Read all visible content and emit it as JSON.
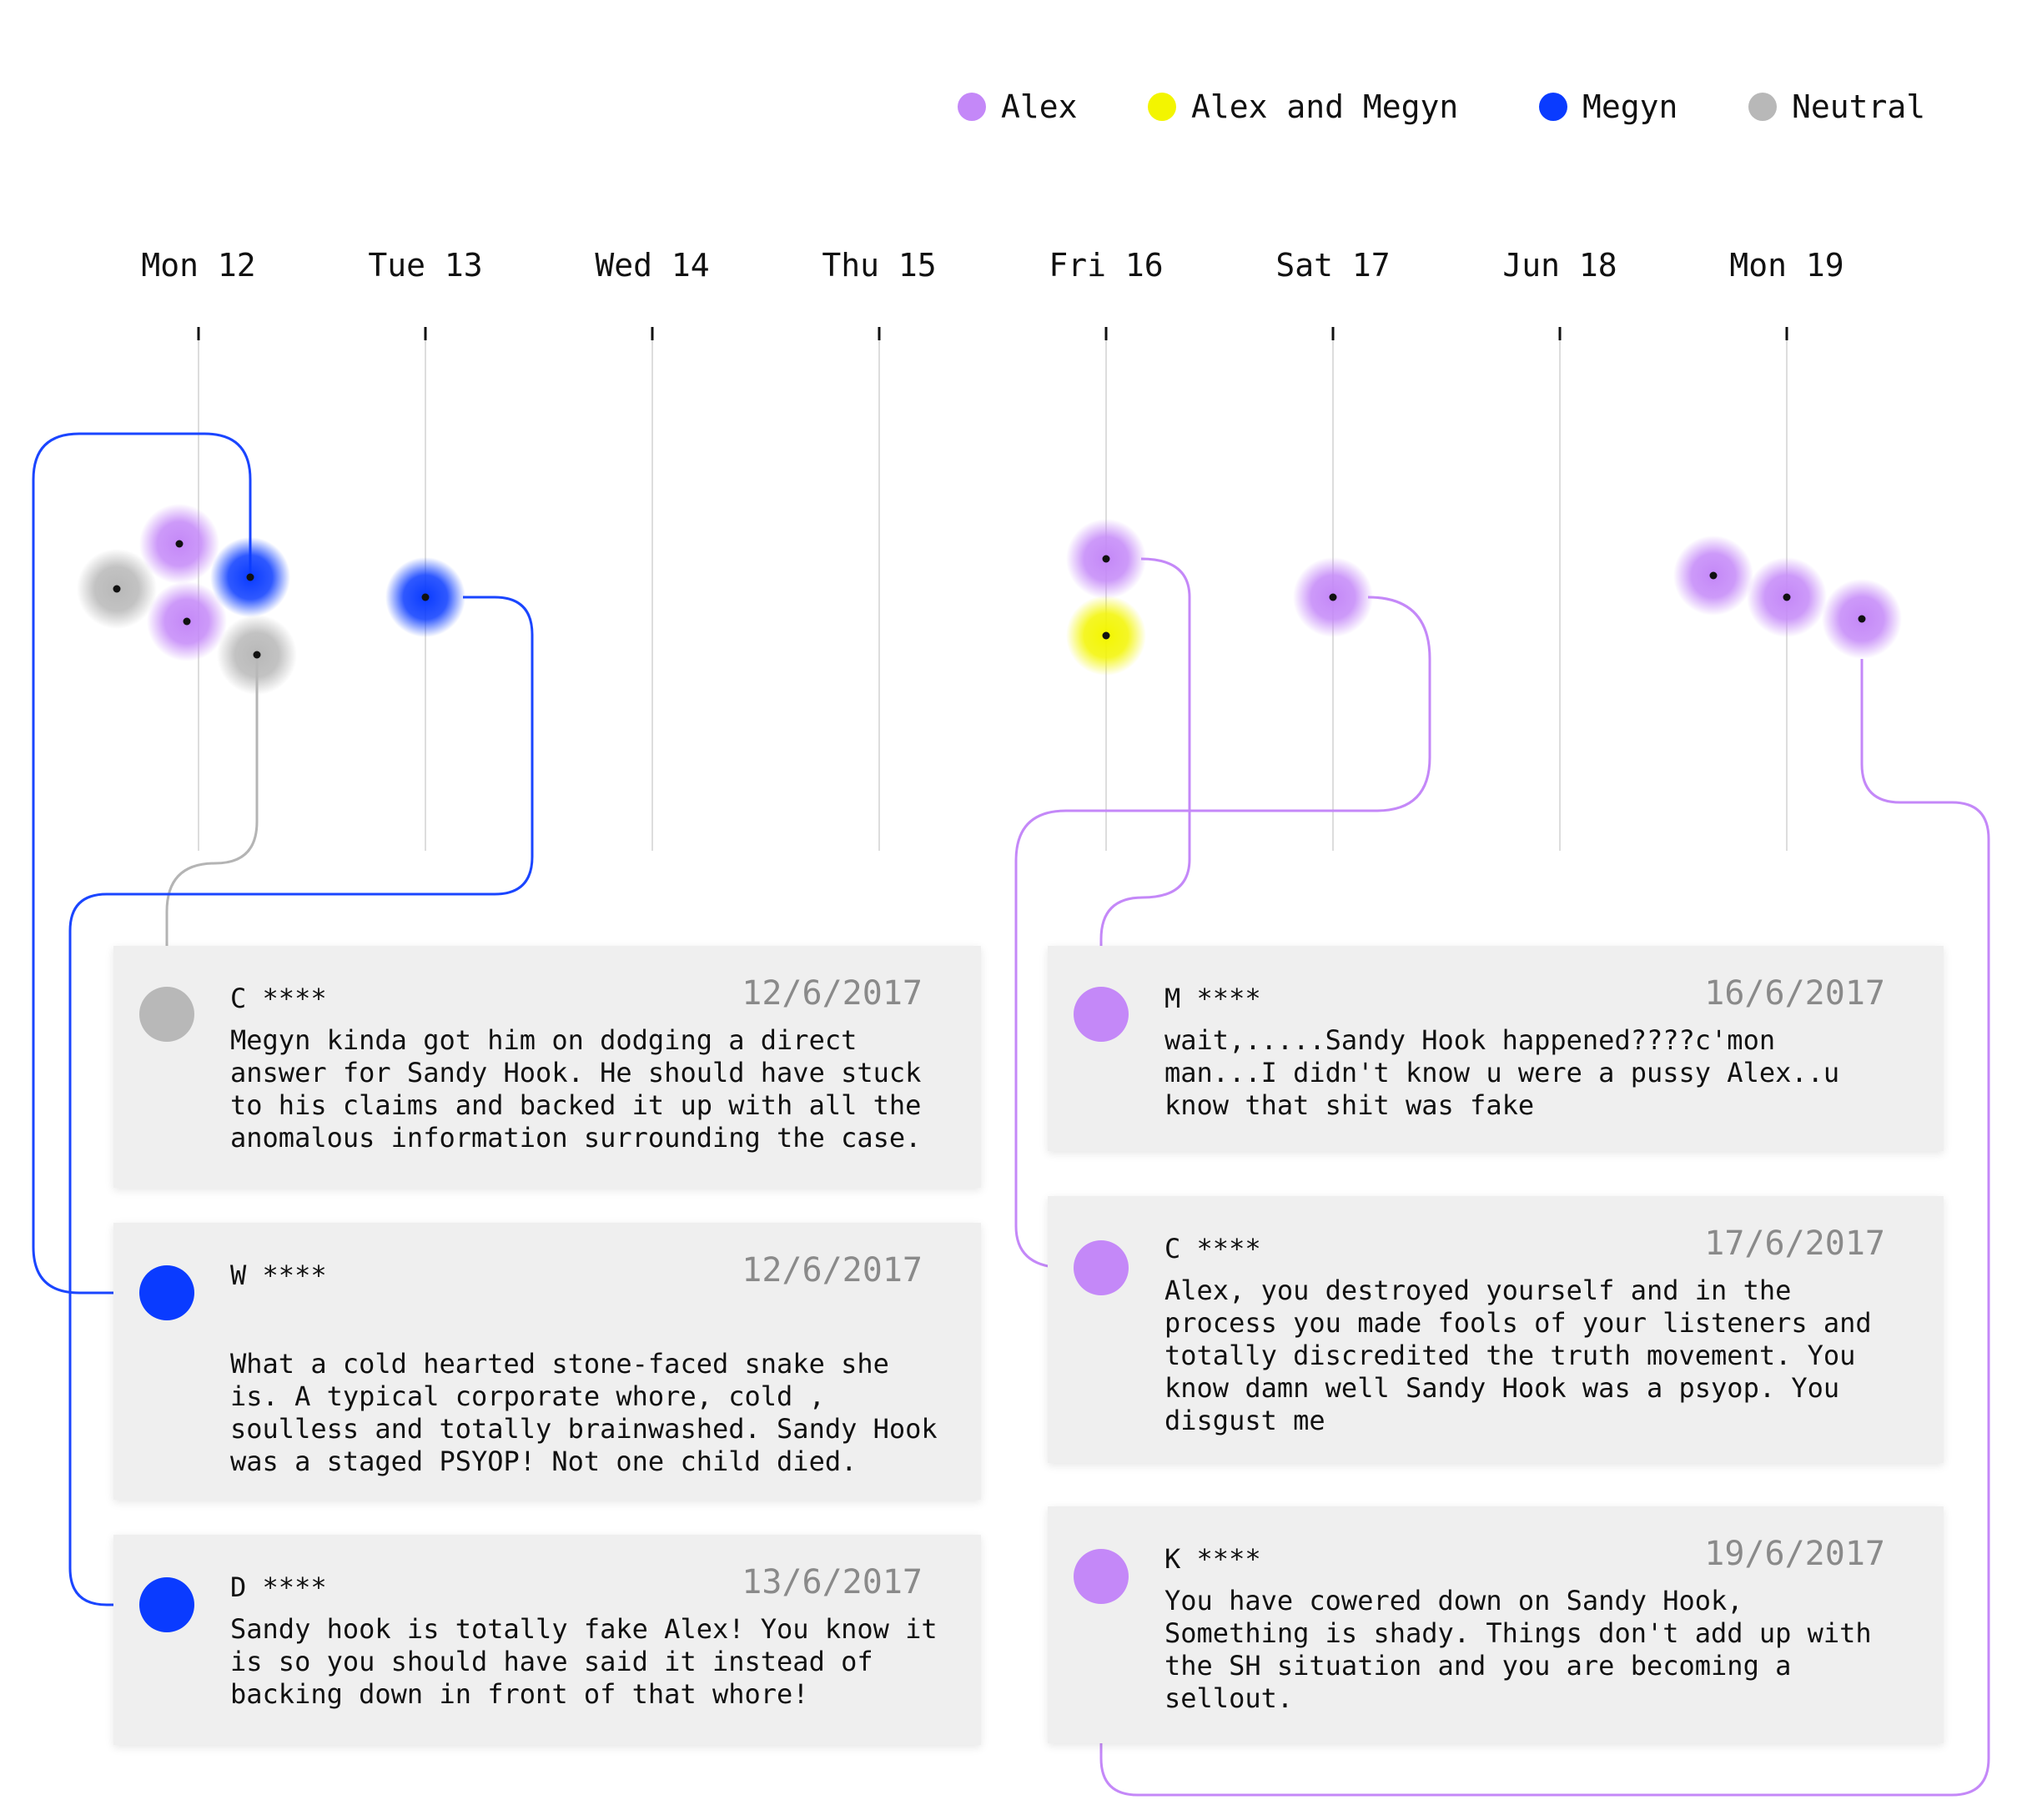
{
  "legend": [
    {
      "key": "alex",
      "label": "Alex",
      "color": "#c488f8"
    },
    {
      "key": "both",
      "label": "Alex and Megyn",
      "color": "#f3f500"
    },
    {
      "key": "megyn",
      "label": "Megyn",
      "color": "#0a3bff"
    },
    {
      "key": "neutral",
      "label": "Neutral",
      "color": "#b8b8b8"
    }
  ],
  "timeline": {
    "days": [
      "Mon 12",
      "Tue 13",
      "Wed 14",
      "Thu 15",
      "Fri 16",
      "Sat 17",
      "Jun 18",
      "Mon 19"
    ]
  },
  "comments_left": [
    {
      "name": "C ****",
      "date": "12/6/2017",
      "sentiment": "neutral",
      "text": "Megyn kinda got him on dodging a direct\nanswer for Sandy Hook. He should have stuck\nto his claims and backed it up with all the\nanomalous information surrounding the case."
    },
    {
      "name": "W ****",
      "date": "12/6/2017",
      "sentiment": "megyn",
      "text": "What a cold hearted stone-faced snake she\nis. A typical corporate whore, cold ,\nsoulless and totally brainwashed. Sandy Hook\nwas a staged PSYOP! Not one child died."
    },
    {
      "name": "D ****",
      "date": "13/6/2017",
      "sentiment": "megyn",
      "text": "Sandy hook is totally fake Alex! You know it\nis so you should have said it instead of\nbacking down in front of that whore!"
    }
  ],
  "comments_right": [
    {
      "name": "M ****",
      "date": "16/6/2017",
      "sentiment": "alex",
      "text": "wait,.....Sandy Hook happened????c'mon\nman...I didn't know u were a pussy Alex..u\nknow that shit was fake"
    },
    {
      "name": "C ****",
      "date": "17/6/2017",
      "sentiment": "alex",
      "text": "Alex, you destroyed yourself and in the\nprocess you made fools of your listeners and\ntotally discredited the truth movement. You\nknow damn well Sandy Hook was a psyop. You\ndisgust me"
    },
    {
      "name": "K ****",
      "date": "19/6/2017",
      "sentiment": "alex",
      "text": "You have cowered down on Sandy Hook,\nSomething is shady. Things don't add up with\nthe SH situation and you are becoming a\nsellout."
    }
  ],
  "chart_data": {
    "type": "scatter",
    "x_categories": [
      "Mon 12",
      "Tue 13",
      "Wed 14",
      "Thu 15",
      "Fri 16",
      "Sat 17",
      "Jun 18",
      "Mon 19"
    ],
    "series": [
      {
        "name": "Alex",
        "points": [
          {
            "x": "Mon 12",
            "count": 2
          },
          {
            "x": "Fri 16",
            "count": 1
          },
          {
            "x": "Sat 17",
            "count": 1
          },
          {
            "x": "Mon 19",
            "count": 3
          }
        ]
      },
      {
        "name": "Alex and Megyn",
        "points": [
          {
            "x": "Fri 16",
            "count": 1
          }
        ]
      },
      {
        "name": "Megyn",
        "points": [
          {
            "x": "Mon 12",
            "count": 1
          },
          {
            "x": "Tue 13",
            "count": 1
          }
        ]
      },
      {
        "name": "Neutral",
        "points": [
          {
            "x": "Mon 12",
            "count": 2
          }
        ]
      }
    ],
    "legend_position": "top-right",
    "grid": true
  }
}
